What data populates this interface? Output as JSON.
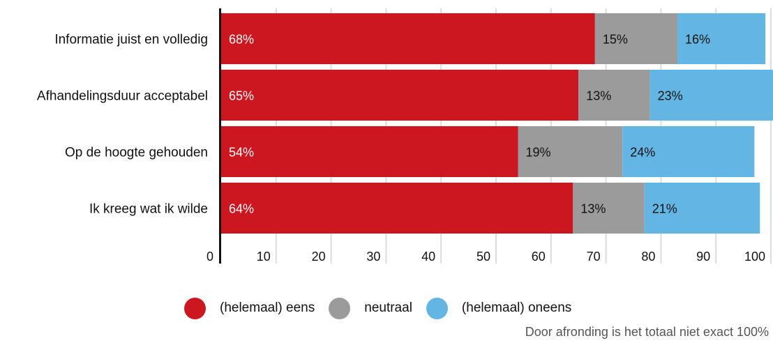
{
  "chart_data": {
    "type": "bar",
    "orientation": "horizontal",
    "stacked": true,
    "categories": [
      "Informatie juist en volledig",
      "Afhandelingsduur acceptabel",
      "Op de hoogte gehouden",
      "Ik kreeg wat ik wilde"
    ],
    "series": [
      {
        "name": "(helemaal) eens",
        "values": [
          68,
          65,
          54,
          64
        ],
        "labels": [
          "68%",
          "65%",
          "54%",
          "64%"
        ],
        "color": "#cc1720",
        "label_color": "#ffffff"
      },
      {
        "name": "neutraal",
        "values": [
          15,
          13,
          19,
          13
        ],
        "labels": [
          "15%",
          "13%",
          "19%",
          "13%"
        ],
        "color": "#9b9b9b",
        "label_color": "#111111"
      },
      {
        "name": "(helemaal) oneens",
        "values": [
          16,
          23,
          24,
          21
        ],
        "labels": [
          "16%",
          "23%",
          "24%",
          "21%"
        ],
        "color": "#63b6e4",
        "label_color": "#111111"
      }
    ],
    "xlim": [
      0,
      100
    ],
    "xticks": [
      "0",
      "10",
      "20",
      "30",
      "40",
      "50",
      "60",
      "70",
      "80",
      "90",
      "100"
    ],
    "grid": true,
    "legend_position": "bottom",
    "footnote": "Door afronding is het totaal niet exact 100%"
  }
}
